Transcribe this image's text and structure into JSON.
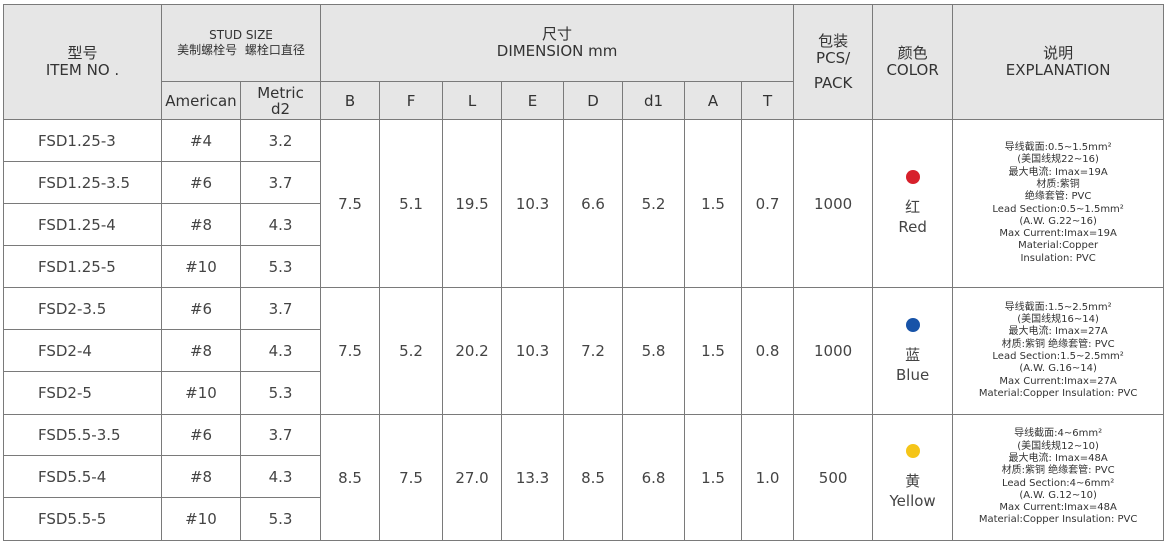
{
  "header": {
    "model_cn": "型号",
    "model_en": "ITEM NO .",
    "stud_title": "STUD SIZE",
    "stud_american_cn": "美制螺栓号",
    "stud_metric_cn": "螺栓口直径",
    "stud_american_en": "American",
    "stud_metric_en": "Metric",
    "stud_metric_sub": "d2",
    "dimension_cn": "尺寸",
    "dimension_en": "DIMENSION mm",
    "dim_cols": [
      "B",
      "F",
      "L",
      "E",
      "D",
      "d1",
      "A",
      "T"
    ],
    "pack_cn": "包装",
    "pack_en_1": "PCS/",
    "pack_en_2": "PACK",
    "color_cn": "颜色",
    "color_en": "COLOR",
    "expl_cn": "说明",
    "expl_en": "EXPLANATION"
  },
  "groups": [
    {
      "rows": [
        {
          "model": "FSD1.25-3",
          "american": "#4",
          "metric": "3.2"
        },
        {
          "model": "FSD1.25-3.5",
          "american": "#6",
          "metric": "3.7"
        },
        {
          "model": "FSD1.25-4",
          "american": "#8",
          "metric": "4.3"
        },
        {
          "model": "FSD1.25-5",
          "american": "#10",
          "metric": "5.3"
        }
      ],
      "dims": {
        "B": "7.5",
        "F": "5.1",
        "L": "19.5",
        "E": "10.3",
        "D": "6.6",
        "d1": "5.2",
        "A": "1.5",
        "T": "0.7"
      },
      "pack": "1000",
      "color_cn": "红",
      "color_en": "Red",
      "dot_color": "#d7202b",
      "explanation": [
        "导线截面:0.5~1.5mm²",
        "(美国线规22~16)",
        "最大电流: Imax=19A",
        "材质:紫铜",
        "绝缘套管: PVC",
        "Lead Section:0.5~1.5mm²",
        "(A.W. G.22~16)",
        "Max Current:Imax=19A",
        "Material:Copper",
        "Insulation: PVC"
      ]
    },
    {
      "rows": [
        {
          "model": "FSD2-3.5",
          "american": "#6",
          "metric": "3.7"
        },
        {
          "model": "FSD2-4",
          "american": "#8",
          "metric": "4.3"
        },
        {
          "model": "FSD2-5",
          "american": "#10",
          "metric": "5.3"
        }
      ],
      "dims": {
        "B": "7.5",
        "F": "5.2",
        "L": "20.2",
        "E": "10.3",
        "D": "7.2",
        "d1": "5.8",
        "A": "1.5",
        "T": "0.8"
      },
      "pack": "1000",
      "color_cn": "蓝",
      "color_en": "Blue",
      "dot_color": "#1753a8",
      "explanation": [
        "导线截面:1.5~2.5mm²",
        "(美国线规16~14)",
        "最大电流: Imax=27A",
        "材质:紫铜 绝缘套管: PVC",
        "Lead Section:1.5~2.5mm²",
        "(A.W. G.16~14)",
        "Max Current:Imax=27A",
        "Material:Copper  Insulation: PVC"
      ]
    },
    {
      "rows": [
        {
          "model": "FSD5.5-3.5",
          "american": "#6",
          "metric": "3.7"
        },
        {
          "model": "FSD5.5-4",
          "american": "#8",
          "metric": "4.3"
        },
        {
          "model": "FSD5.5-5",
          "american": "#10",
          "metric": "5.3"
        }
      ],
      "dims": {
        "B": "8.5",
        "F": "7.5",
        "L": "27.0",
        "E": "13.3",
        "D": "8.5",
        "d1": "6.8",
        "A": "1.5",
        "T": "1.0"
      },
      "pack": "500",
      "color_cn": "黄",
      "color_en": "Yellow",
      "dot_color": "#f5c518",
      "explanation": [
        "导线截面:4~6mm²",
        "(美国线规12~10)",
        "最大电流: Imax=48A",
        "材质:紫铜 绝缘套管: PVC",
        "Lead Section:4~6mm²",
        "(A.W. G.12~10)",
        "Max Current:Imax=48A",
        "Material:Copper Insulation: PVC"
      ]
    }
  ]
}
